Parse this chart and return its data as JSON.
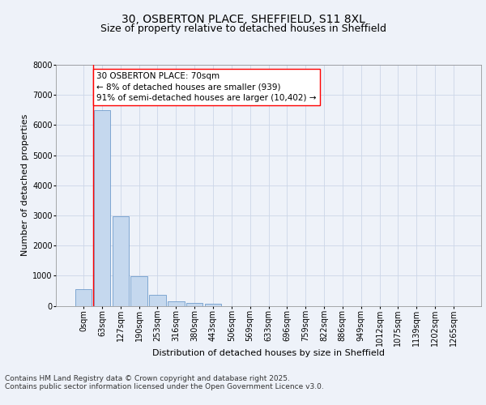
{
  "title_line1": "30, OSBERTON PLACE, SHEFFIELD, S11 8XL",
  "title_line2": "Size of property relative to detached houses in Sheffield",
  "xlabel": "Distribution of detached houses by size in Sheffield",
  "ylabel": "Number of detached properties",
  "bar_color": "#c5d8ee",
  "bar_edge_color": "#5b8ec4",
  "grid_color": "#ccd6e8",
  "annotation_line_color": "red",
  "annotation_text_line1": "30 OSBERTON PLACE: 70sqm",
  "annotation_text_line2": "← 8% of detached houses are smaller (939)",
  "annotation_text_line3": "91% of semi-detached houses are larger (10,402) →",
  "footer_line1": "Contains HM Land Registry data © Crown copyright and database right 2025.",
  "footer_line2": "Contains public sector information licensed under the Open Government Licence v3.0.",
  "categories": [
    "0sqm",
    "63sqm",
    "127sqm",
    "190sqm",
    "253sqm",
    "316sqm",
    "380sqm",
    "443sqm",
    "506sqm",
    "569sqm",
    "633sqm",
    "696sqm",
    "759sqm",
    "822sqm",
    "886sqm",
    "949sqm",
    "1012sqm",
    "1075sqm",
    "1139sqm",
    "1202sqm",
    "1265sqm"
  ],
  "values": [
    560,
    6490,
    2980,
    970,
    360,
    160,
    100,
    65,
    0,
    0,
    0,
    0,
    0,
    0,
    0,
    0,
    0,
    0,
    0,
    0,
    0
  ],
  "ylim": [
    0,
    8000
  ],
  "yticks": [
    0,
    1000,
    2000,
    3000,
    4000,
    5000,
    6000,
    7000,
    8000
  ],
  "background_color": "#eef2f9",
  "title_fontsize": 10,
  "subtitle_fontsize": 9,
  "axis_label_fontsize": 8,
  "tick_fontsize": 7,
  "annotation_fontsize": 7.5,
  "footer_fontsize": 6.5
}
